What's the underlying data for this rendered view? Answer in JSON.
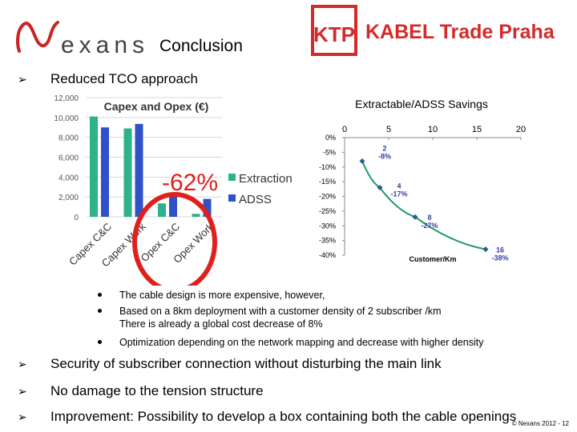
{
  "header": {
    "nexans_logo_text": "exans",
    "title": "Conclusion",
    "partner_logo_mark": "KTP",
    "partner_logo_text": "KABEL Trade Praha"
  },
  "bullets": [
    {
      "text": "Reduced TCO approach"
    },
    {
      "text": "Security of subscriber connection without disturbing the main link"
    },
    {
      "text": "No damage to the tension structure"
    },
    {
      "text": "Improvement: Possibility to develop a box containing both the cable openings"
    }
  ],
  "sub_bullets": [
    {
      "text": "The cable design is more expensive, however,"
    },
    {
      "text": "Based on a 8km deployment with a customer density of 2 subscriber /km"
    },
    {
      "text": "There is already a global cost decrease of 8%"
    },
    {
      "text": "Optimization depending on the network mapping and decrease with higher density"
    }
  ],
  "overlay": {
    "callout": "-62%"
  },
  "chart_data": [
    {
      "type": "bar",
      "title": "Capex and Opex (€)",
      "categories": [
        "Capex C&C",
        "Capex Work",
        "Opex C&C",
        "Opex Work"
      ],
      "y_tick_labels": [
        "0",
        "2,000",
        "4,000",
        "6,000",
        "8,000",
        "10,000",
        "12,000"
      ],
      "ylim": [
        0,
        12000
      ],
      "grid": true,
      "legend_position": "right",
      "series": [
        {
          "name": "Extraction",
          "color": "#2db38a",
          "values": [
            10100,
            8900,
            1350,
            300
          ]
        },
        {
          "name": "ADSS",
          "color": "#2f52c8",
          "values": [
            9000,
            9350,
            2050,
            1800
          ]
        }
      ]
    },
    {
      "type": "line",
      "title": "Extractable/ADSS Savings",
      "xlabel": "Customer/Km",
      "x_tick_labels": [
        "0",
        "5",
        "10",
        "15",
        "20"
      ],
      "y_tick_labels": [
        "0%",
        "-5%",
        "-10%",
        "-15%",
        "-20%",
        "-25%",
        "-30%",
        "-35%",
        "-40%"
      ],
      "xlim": [
        0,
        20
      ],
      "ylim": [
        -40,
        0
      ],
      "color": "#1f9a6a",
      "x": [
        2,
        4,
        8,
        16
      ],
      "y": [
        -8,
        -17,
        -27,
        -38
      ],
      "data_labels": [
        {
          "x_label": "2",
          "y_label": "-8%"
        },
        {
          "x_label": "4",
          "y_label": "-17%"
        },
        {
          "x_label": "8",
          "y_label": "-27%"
        },
        {
          "x_label": "16",
          "y_label": "-38%"
        }
      ]
    }
  ],
  "footer": {
    "copyright": "© Nexans 2012 - 12"
  },
  "colors": {
    "nexans_red": "#cc2222",
    "ktp_red": "#d42a2a",
    "circle_red": "#e0201c",
    "label_blue": "#3a3aa8"
  }
}
